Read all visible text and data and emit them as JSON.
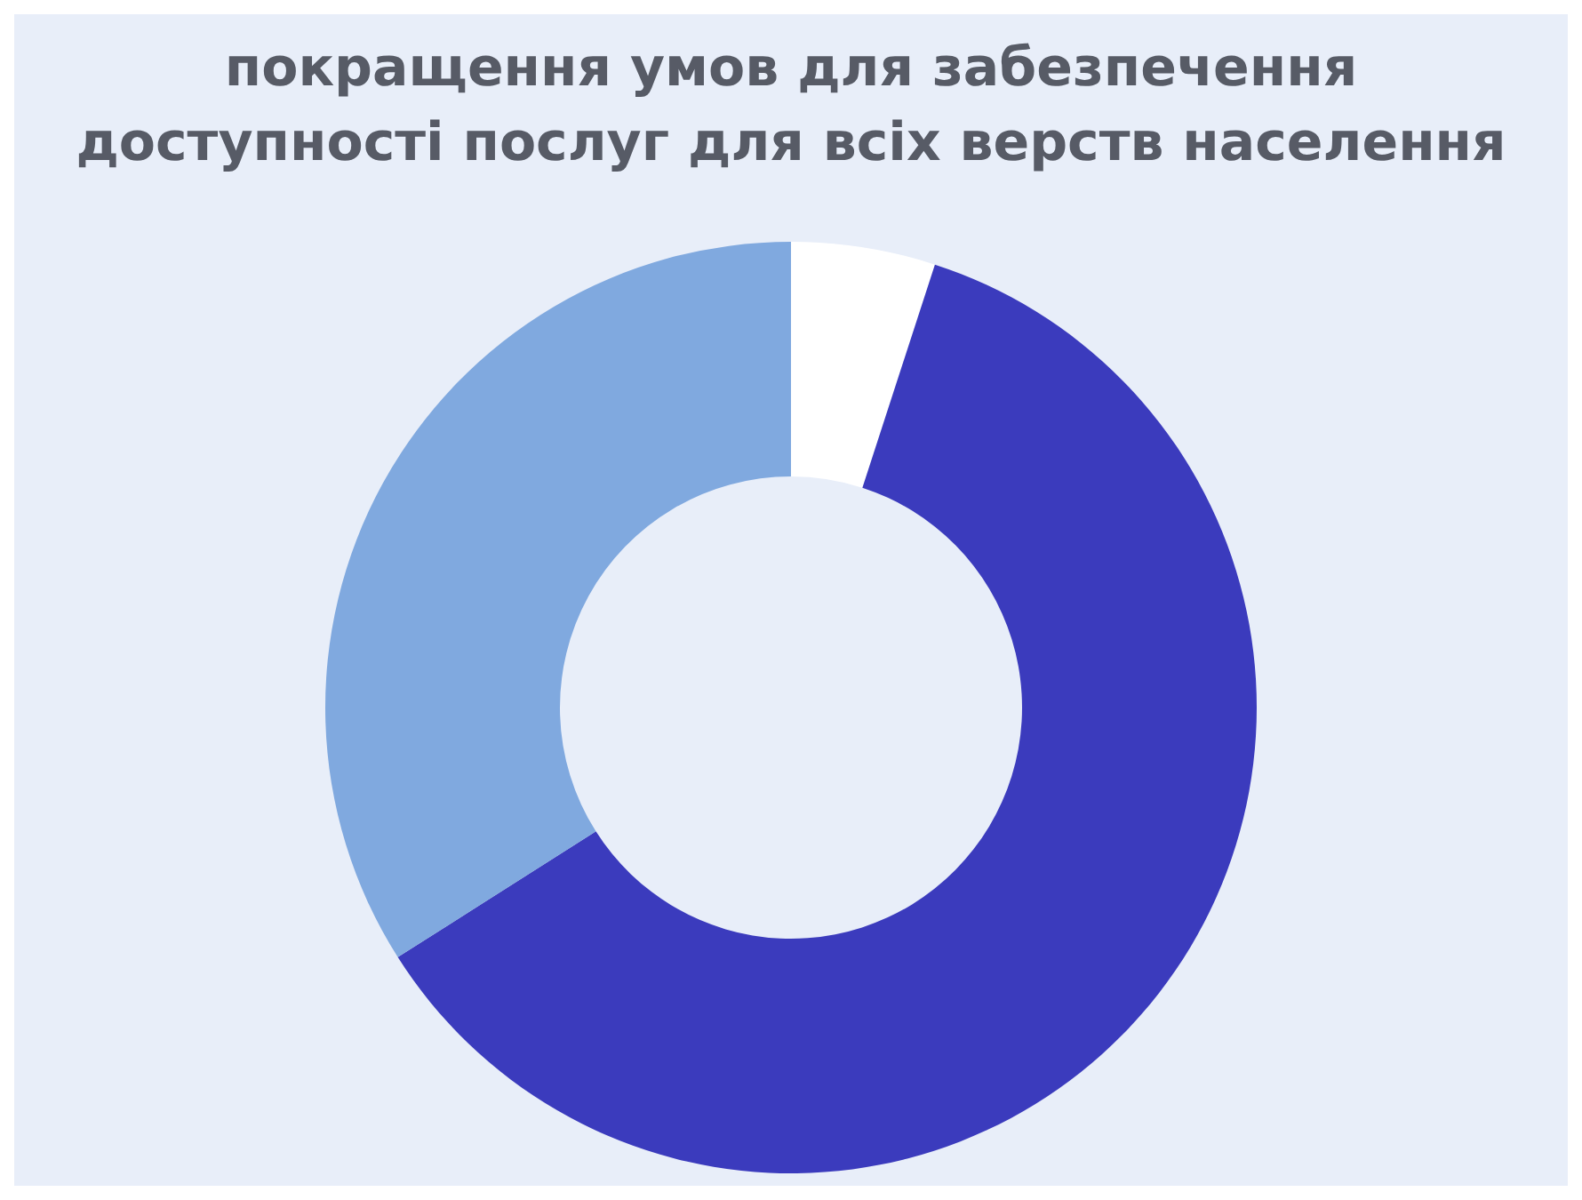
{
  "chart_data": {
    "type": "donut",
    "title": "покращення умов для забезпечення доступності послуг для всіх верств населення",
    "categories": [
      null,
      null,
      null
    ],
    "values": [
      5,
      61,
      34
    ],
    "colors": [
      "#ffffff",
      "#3b3bbd",
      "#80a9df"
    ]
  }
}
